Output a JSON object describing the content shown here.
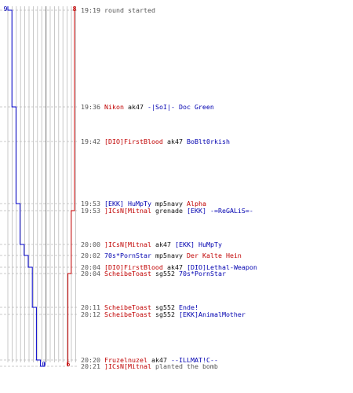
{
  "colors": {
    "team_red": "#cc0000",
    "team_blue": "#0000cc",
    "weapon_text": "#111111",
    "time_text": "#555555",
    "grid": "#bbbbbb",
    "grid_dark": "#888888"
  },
  "chart_data": {
    "type": "line",
    "title": "",
    "y_axis_labels": {
      "blue_start": "9",
      "red_start": "8",
      "blue_end": "0",
      "red_end": "6"
    },
    "series": [
      {
        "team": "blue",
        "values": [
          9,
          8,
          7,
          7,
          6,
          6,
          5,
          4,
          3,
          3,
          2,
          2,
          1,
          0
        ]
      },
      {
        "team": "red",
        "values": [
          8,
          8,
          8,
          8,
          8,
          7,
          7,
          7,
          7,
          6,
          6,
          6,
          6,
          6
        ]
      }
    ]
  },
  "events": [
    {
      "time": "19:19",
      "parts": [
        {
          "text": "round started",
          "color": "default"
        }
      ]
    },
    {
      "time": "19:36",
      "parts": [
        {
          "text": "Nikon",
          "color": "red"
        },
        {
          "text": "ak47",
          "color": "black"
        },
        {
          "text": "-|SoI|- Doc Green",
          "color": "blue"
        }
      ]
    },
    {
      "time": "19:42",
      "parts": [
        {
          "text": "[DIO]FirstBlood",
          "color": "red"
        },
        {
          "text": "ak47",
          "color": "black"
        },
        {
          "text": "BoBlt0rkish",
          "color": "blue"
        }
      ]
    },
    {
      "time": "19:53",
      "parts": [
        {
          "text": "[EKK] HuMpTy",
          "color": "blue"
        },
        {
          "text": "mp5navy",
          "color": "black"
        },
        {
          "text": "Alpha",
          "color": "red"
        }
      ]
    },
    {
      "time": "19:53",
      "parts": [
        {
          "text": "]ICsN[Mitnal",
          "color": "red"
        },
        {
          "text": "grenade",
          "color": "black"
        },
        {
          "text": "[EKK] -=ReGALiS=-",
          "color": "blue"
        }
      ]
    },
    {
      "time": "20:00",
      "parts": [
        {
          "text": "]ICsN[Mitnal",
          "color": "red"
        },
        {
          "text": "ak47",
          "color": "black"
        },
        {
          "text": "[EKK] HuMpTy",
          "color": "blue"
        }
      ]
    },
    {
      "time": "20:02",
      "parts": [
        {
          "text": "70s*PornStar",
          "color": "blue"
        },
        {
          "text": "mp5navy",
          "color": "black"
        },
        {
          "text": "Der Kalte Hein",
          "color": "red"
        }
      ]
    },
    {
      "time": "20:04",
      "parts": [
        {
          "text": "[DIO]FirstBlood",
          "color": "red"
        },
        {
          "text": "ak47",
          "color": "black"
        },
        {
          "text": "[DIO]Lethal-Weapon",
          "color": "blue"
        }
      ]
    },
    {
      "time": "20:04",
      "parts": [
        {
          "text": "ScheibeToast",
          "color": "red"
        },
        {
          "text": "sg552",
          "color": "black"
        },
        {
          "text": "70s*PornStar",
          "color": "blue"
        }
      ]
    },
    {
      "time": "20:11",
      "parts": [
        {
          "text": "ScheibeToast",
          "color": "red"
        },
        {
          "text": "sg552",
          "color": "black"
        },
        {
          "text": "Ende!",
          "color": "blue"
        }
      ]
    },
    {
      "time": "20:12",
      "parts": [
        {
          "text": "ScheibeToast",
          "color": "red"
        },
        {
          "text": "sg552",
          "color": "black"
        },
        {
          "text": "[EKK]AnimalMother",
          "color": "blue"
        }
      ]
    },
    {
      "time": "20:20",
      "parts": [
        {
          "text": "Fruzelnuzel",
          "color": "red"
        },
        {
          "text": "ak47",
          "color": "black"
        },
        {
          "text": "--ILLMAT!C--",
          "color": "blue"
        }
      ]
    },
    {
      "time": "20:21",
      "parts": [
        {
          "text": "]ICsN[Mitnal",
          "color": "red"
        },
        {
          "text": "planted the bomb",
          "color": "default"
        }
      ]
    }
  ]
}
